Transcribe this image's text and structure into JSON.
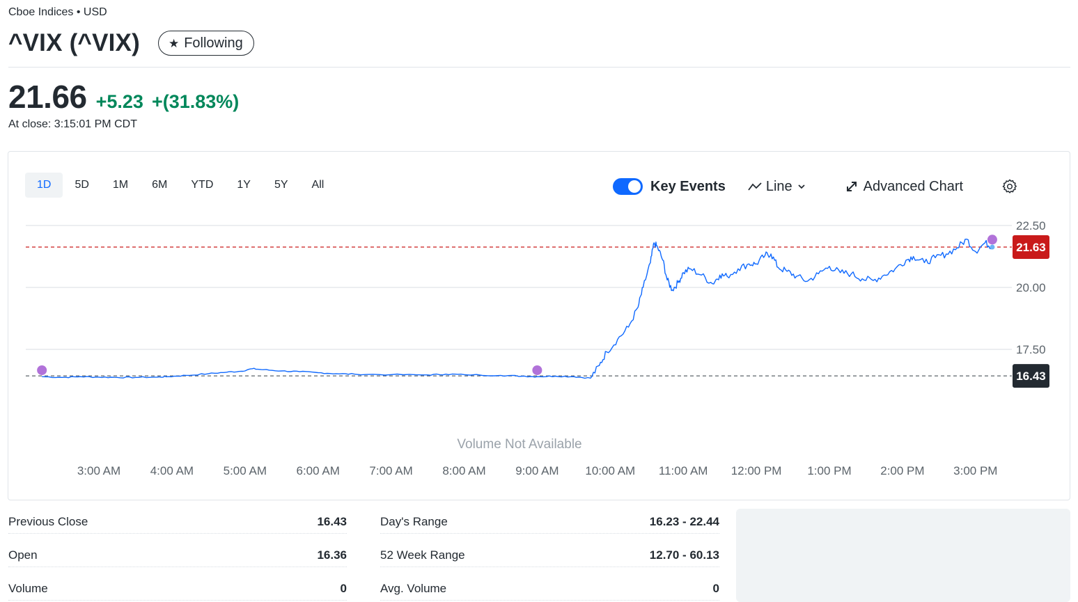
{
  "header": {
    "exchange": "Cboe Indices • USD",
    "title": "^VIX (^VIX)",
    "follow_label": "Following"
  },
  "quote": {
    "price": "21.66",
    "change": "+5.23",
    "change_pct": "+(31.83%)",
    "close_time": "At close: 3:15:01 PM CDT",
    "up_color": "#00875a"
  },
  "chart_toolbar": {
    "ranges": [
      "1D",
      "5D",
      "1M",
      "6M",
      "YTD",
      "1Y",
      "5Y",
      "All"
    ],
    "active_range": "1D",
    "key_events_label": "Key Events",
    "key_events_on": true,
    "chart_type_label": "Line",
    "advanced_label": "Advanced Chart"
  },
  "chart_data": {
    "type": "line",
    "x_ticks": [
      "3:00 AM",
      "4:00 AM",
      "5:00 AM",
      "6:00 AM",
      "7:00 AM",
      "8:00 AM",
      "9:00 AM",
      "10:00 AM",
      "11:00 AM",
      "12:00 PM",
      "1:00 PM",
      "2:00 PM",
      "3:00 PM"
    ],
    "y_ticks": [
      "22.50",
      "20.00",
      "17.50"
    ],
    "ylim": [
      15.9,
      22.5
    ],
    "current_price_label": "21.63",
    "current_price_value": 21.63,
    "previous_close_label": "16.43",
    "previous_close_value": 16.43,
    "no_volume_text": "Volume Not Available",
    "line_color": "#0f69ff",
    "current_color": "#c91a1a",
    "prev_close_color": "#232a31",
    "event_color": "#b172d9",
    "key_event_times": [
      2.22,
      9.0,
      15.23
    ],
    "series": [
      {
        "points": [
          [
            2.22,
            16.4
          ],
          [
            2.5,
            16.37
          ],
          [
            2.75,
            16.4
          ],
          [
            3.0,
            16.38
          ],
          [
            3.25,
            16.37
          ],
          [
            3.5,
            16.37
          ],
          [
            3.8,
            16.38
          ],
          [
            3.95,
            16.4
          ],
          [
            4.2,
            16.45
          ],
          [
            4.5,
            16.52
          ],
          [
            4.75,
            16.58
          ],
          [
            4.95,
            16.62
          ],
          [
            5.1,
            16.72
          ],
          [
            5.25,
            16.68
          ],
          [
            5.5,
            16.63
          ],
          [
            5.75,
            16.6
          ],
          [
            6.0,
            16.56
          ],
          [
            6.25,
            16.52
          ],
          [
            6.5,
            16.5
          ],
          [
            7.0,
            16.48
          ],
          [
            7.5,
            16.47
          ],
          [
            7.75,
            16.5
          ],
          [
            8.0,
            16.48
          ],
          [
            8.5,
            16.45
          ],
          [
            8.8,
            16.42
          ],
          [
            9.0,
            16.4
          ],
          [
            9.25,
            16.42
          ],
          [
            9.5,
            16.4
          ],
          [
            9.73,
            16.34
          ],
          [
            9.85,
            16.85
          ],
          [
            9.95,
            17.4
          ],
          [
            10.1,
            17.9
          ],
          [
            10.25,
            18.4
          ],
          [
            10.38,
            19.2
          ],
          [
            10.45,
            20.0
          ],
          [
            10.55,
            21.0
          ],
          [
            10.6,
            21.8
          ],
          [
            10.65,
            21.6
          ],
          [
            10.72,
            21.1
          ],
          [
            10.78,
            20.3
          ],
          [
            10.85,
            19.9
          ],
          [
            10.93,
            20.2
          ],
          [
            11.0,
            20.6
          ],
          [
            11.1,
            20.75
          ],
          [
            11.25,
            20.5
          ],
          [
            11.4,
            20.15
          ],
          [
            11.5,
            20.5
          ],
          [
            11.6,
            20.45
          ],
          [
            11.75,
            20.75
          ],
          [
            11.9,
            20.95
          ],
          [
            12.0,
            20.95
          ],
          [
            12.12,
            21.3
          ],
          [
            12.2,
            21.35
          ],
          [
            12.3,
            20.8
          ],
          [
            12.42,
            20.65
          ],
          [
            12.55,
            20.45
          ],
          [
            12.7,
            20.25
          ],
          [
            12.85,
            20.55
          ],
          [
            13.0,
            20.85
          ],
          [
            13.15,
            20.6
          ],
          [
            13.3,
            20.55
          ],
          [
            13.45,
            20.35
          ],
          [
            13.6,
            20.28
          ],
          [
            13.75,
            20.5
          ],
          [
            13.9,
            20.75
          ],
          [
            14.05,
            21.1
          ],
          [
            14.15,
            21.25
          ],
          [
            14.3,
            21.0
          ],
          [
            14.45,
            21.2
          ],
          [
            14.6,
            21.35
          ],
          [
            14.75,
            21.6
          ],
          [
            14.88,
            21.95
          ],
          [
            15.0,
            21.45
          ],
          [
            15.13,
            21.8
          ],
          [
            15.23,
            21.63
          ]
        ]
      }
    ]
  },
  "stats": [
    {
      "label": "Previous Close",
      "value": "16.43"
    },
    {
      "label": "Day's Range",
      "value": "16.23 - 22.44"
    },
    {
      "label": "Open",
      "value": "16.36"
    },
    {
      "label": "52 Week Range",
      "value": "12.70 - 60.13"
    },
    {
      "label": "Volume",
      "value": "0"
    },
    {
      "label": "Avg. Volume",
      "value": "0"
    }
  ]
}
